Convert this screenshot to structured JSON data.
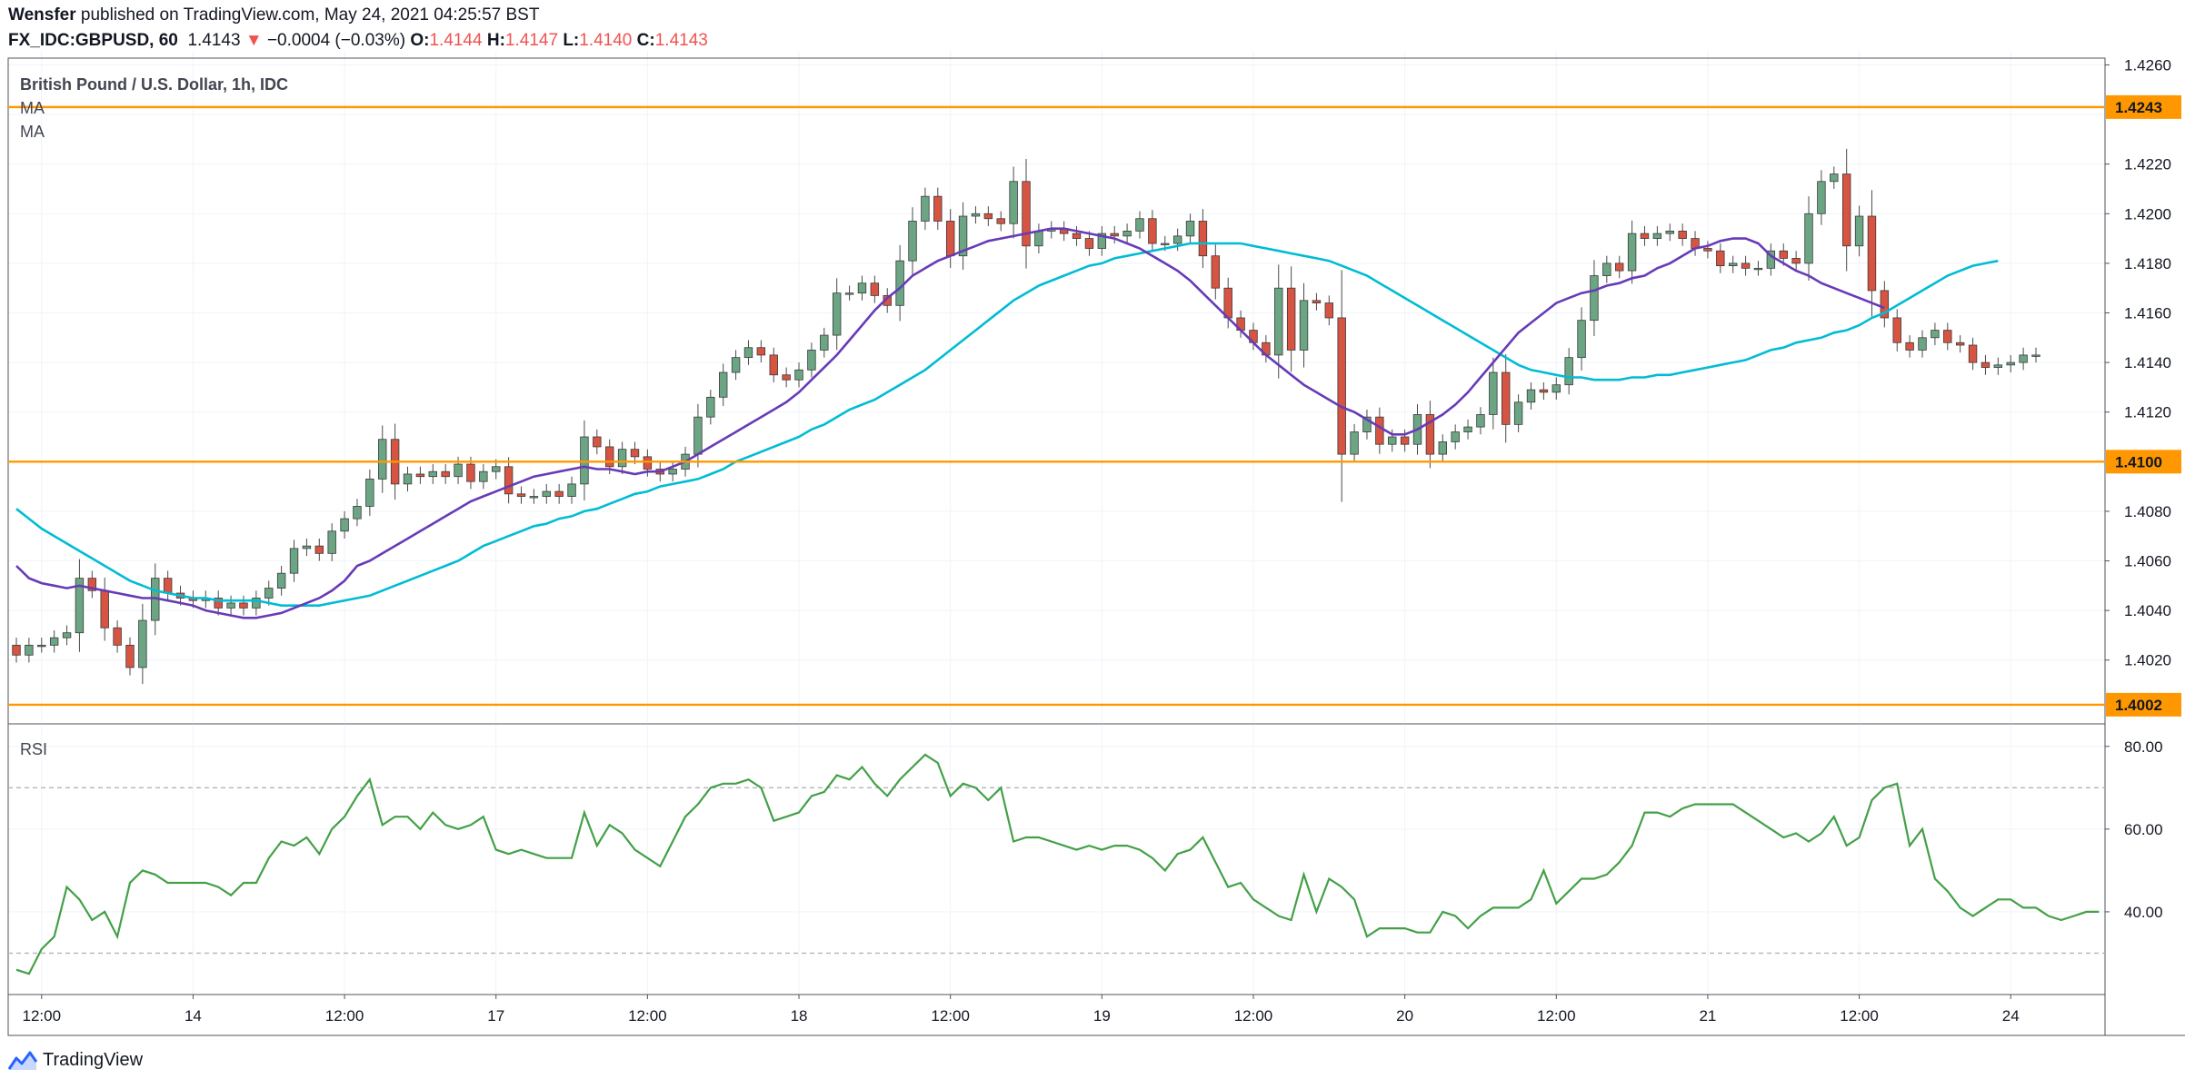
{
  "header": {
    "author": "Wensfer",
    "published_text": "published on TradingView.com, May 24, 2021 04:25:57 BST",
    "symbol": "FX_IDC:GBPUSD, 60",
    "last_price": "1.4143",
    "change_arrow": "▼",
    "change": "−0.0004 (−0.03%)",
    "open_label": "O:",
    "open": "1.4144",
    "high_label": "H:",
    "high": "1.4147",
    "low_label": "L:",
    "low": "1.4140",
    "close_label": "C:",
    "close": "1.4143"
  },
  "footer": {
    "brand": "TradingView"
  },
  "colors": {
    "up": "#6ba583",
    "down": "#d75442",
    "ma_fast": "#673ab7",
    "ma_slow": "#00bcd4",
    "hline": "#ff9800",
    "rsi": "#43a047",
    "grid": "#f0f3fa",
    "axis_text": "#131722",
    "border": "#50535e"
  },
  "chart_data": [
    {
      "type": "candlestick",
      "title": "British Pound / U.S. Dollar, 1h, IDC",
      "indicators": [
        "MA",
        "MA"
      ],
      "y_range": [
        1.3995,
        1.4262
      ],
      "y_ticks": [
        "1.4020",
        "1.4040",
        "1.4060",
        "1.4080",
        "1.4100",
        "1.4120",
        "1.4140",
        "1.4160",
        "1.4180",
        "1.4200",
        "1.4220",
        "1.4240",
        "1.4260"
      ],
      "x_ticks": [
        {
          "i": 2,
          "label": "12:00"
        },
        {
          "i": 14,
          "label": "14"
        },
        {
          "i": 26,
          "label": "12:00"
        },
        {
          "i": 38,
          "label": "17"
        },
        {
          "i": 50,
          "label": "12:00"
        },
        {
          "i": 62,
          "label": "18"
        },
        {
          "i": 74,
          "label": "12:00"
        },
        {
          "i": 86,
          "label": "19"
        },
        {
          "i": 98,
          "label": "12:00"
        },
        {
          "i": 110,
          "label": "20"
        },
        {
          "i": 122,
          "label": "12:00"
        },
        {
          "i": 134,
          "label": "21"
        },
        {
          "i": 146,
          "label": "12:00"
        },
        {
          "i": 158,
          "label": "24"
        }
      ],
      "horizontal_lines": [
        {
          "value": 1.4243,
          "label": "1.4243"
        },
        {
          "value": 1.41,
          "label": "1.4100"
        },
        {
          "value": 1.4002,
          "label": "1.4002"
        }
      ],
      "close": [
        1.4022,
        1.4026,
        1.4026,
        1.4029,
        1.4031,
        1.4053,
        1.4048,
        1.4033,
        1.4026,
        1.4017,
        1.4036,
        1.4053,
        1.4047,
        1.4045,
        1.4044,
        1.4045,
        1.4041,
        1.4043,
        1.4041,
        1.4045,
        1.4049,
        1.4055,
        1.4065,
        1.4066,
        1.4063,
        1.4072,
        1.4077,
        1.4082,
        1.4093,
        1.4109,
        1.4091,
        1.4095,
        1.4094,
        1.4096,
        1.4094,
        1.4099,
        1.4092,
        1.4096,
        1.4098,
        1.4087,
        1.4086,
        1.4086,
        1.4088,
        1.4086,
        1.4091,
        1.411,
        1.4106,
        1.4098,
        1.4105,
        1.4102,
        1.4097,
        1.4095,
        1.4097,
        1.4103,
        1.4118,
        1.4126,
        1.4136,
        1.4142,
        1.4146,
        1.4143,
        1.4135,
        1.4133,
        1.4137,
        1.4145,
        1.4151,
        1.4168,
        1.4168,
        1.4172,
        1.4167,
        1.4163,
        1.4181,
        1.4197,
        1.4207,
        1.4197,
        1.4183,
        1.4199,
        1.42,
        1.4198,
        1.4196,
        1.4213,
        1.4187,
        1.4193,
        1.4194,
        1.4192,
        1.419,
        1.4186,
        1.4192,
        1.4191,
        1.4193,
        1.4198,
        1.4188,
        1.4188,
        1.4191,
        1.4197,
        1.4183,
        1.417,
        1.4158,
        1.4153,
        1.4148,
        1.4143,
        1.417,
        1.4145,
        1.4165,
        1.4164,
        1.4158,
        1.4103,
        1.4112,
        1.4118,
        1.4107,
        1.411,
        1.4107,
        1.4119,
        1.4103,
        1.4108,
        1.4112,
        1.4114,
        1.4119,
        1.4136,
        1.4115,
        1.4124,
        1.4129,
        1.4128,
        1.4131,
        1.4142,
        1.4157,
        1.4175,
        1.418,
        1.4177,
        1.4192,
        1.419,
        1.4192,
        1.4193,
        1.419,
        1.4186,
        1.4185,
        1.4179,
        1.418,
        1.4178,
        1.4178,
        1.4185,
        1.4182,
        1.418,
        1.42,
        1.4213,
        1.4216,
        1.4187,
        1.4199,
        1.4169,
        1.4158,
        1.4148,
        1.4145,
        1.415,
        1.4153,
        1.4148,
        1.4147,
        1.414,
        1.4138,
        1.4139,
        1.414,
        1.4143,
        1.4143
      ],
      "ma_fast": [
        1.4058,
        1.4053,
        1.4051,
        1.405,
        1.4049,
        1.405,
        1.4049,
        1.4048,
        1.4047,
        1.4046,
        1.4045,
        1.4045,
        1.4044,
        1.4043,
        1.4042,
        1.404,
        1.4039,
        1.4038,
        1.4037,
        1.4037,
        1.4038,
        1.4039,
        1.4041,
        1.4043,
        1.4045,
        1.4048,
        1.4052,
        1.4058,
        1.406,
        1.4063,
        1.4066,
        1.4069,
        1.4072,
        1.4075,
        1.4078,
        1.4081,
        1.4084,
        1.4086,
        1.4088,
        1.409,
        1.4092,
        1.4094,
        1.4095,
        1.4096,
        1.4097,
        1.4098,
        1.4097,
        1.4097,
        1.4096,
        1.4095,
        1.4096,
        1.4096,
        1.4098,
        1.41,
        1.4103,
        1.4106,
        1.4109,
        1.4112,
        1.4115,
        1.4118,
        1.4121,
        1.4124,
        1.4128,
        1.4133,
        1.4138,
        1.4143,
        1.4149,
        1.4155,
        1.4161,
        1.4166,
        1.417,
        1.4175,
        1.4178,
        1.4181,
        1.4183,
        1.4185,
        1.4187,
        1.4189,
        1.419,
        1.4191,
        1.4192,
        1.4193,
        1.4194,
        1.4194,
        1.4193,
        1.4192,
        1.4191,
        1.419,
        1.4188,
        1.4186,
        1.4183,
        1.418,
        1.4177,
        1.4173,
        1.4168,
        1.4163,
        1.4158,
        1.4153,
        1.4148,
        1.4143,
        1.4139,
        1.4135,
        1.4131,
        1.4128,
        1.4125,
        1.4122,
        1.412,
        1.4117,
        1.4114,
        1.4111,
        1.4111,
        1.4113,
        1.4116,
        1.4119,
        1.4123,
        1.4128,
        1.4134,
        1.414,
        1.4146,
        1.4152,
        1.4156,
        1.416,
        1.4164,
        1.4166,
        1.4168,
        1.4169,
        1.4171,
        1.4172,
        1.4174,
        1.4175,
        1.4178,
        1.418,
        1.4183,
        1.4186,
        1.4187,
        1.4189,
        1.419,
        1.419,
        1.4188,
        1.4183,
        1.418,
        1.4177,
        1.4175,
        1.4172,
        1.417,
        1.4168,
        1.4166,
        1.4164,
        1.4162
      ],
      "ma_slow": [
        1.4081,
        1.4077,
        1.4073,
        1.407,
        1.4067,
        1.4064,
        1.4061,
        1.4058,
        1.4055,
        1.4052,
        1.405,
        1.4048,
        1.4047,
        1.4046,
        1.4045,
        1.4045,
        1.4044,
        1.4044,
        1.4044,
        1.4044,
        1.4043,
        1.4042,
        1.4042,
        1.4042,
        1.4042,
        1.4043,
        1.4044,
        1.4045,
        1.4046,
        1.4048,
        1.405,
        1.4052,
        1.4054,
        1.4056,
        1.4058,
        1.406,
        1.4063,
        1.4066,
        1.4068,
        1.407,
        1.4072,
        1.4074,
        1.4075,
        1.4077,
        1.4078,
        1.408,
        1.4081,
        1.4083,
        1.4085,
        1.4087,
        1.4088,
        1.409,
        1.4091,
        1.4092,
        1.4093,
        1.4095,
        1.4097,
        1.41,
        1.4102,
        1.4104,
        1.4106,
        1.4108,
        1.411,
        1.4113,
        1.4115,
        1.4118,
        1.4121,
        1.4123,
        1.4125,
        1.4128,
        1.4131,
        1.4134,
        1.4137,
        1.4141,
        1.4145,
        1.4149,
        1.4153,
        1.4157,
        1.4161,
        1.4165,
        1.4168,
        1.4171,
        1.4173,
        1.4175,
        1.4177,
        1.4179,
        1.418,
        1.4182,
        1.4183,
        1.4184,
        1.4185,
        1.4186,
        1.4187,
        1.4188,
        1.4188,
        1.4188,
        1.4188,
        1.4188,
        1.4187,
        1.4186,
        1.4185,
        1.4184,
        1.4183,
        1.4182,
        1.4181,
        1.4179,
        1.4177,
        1.4175,
        1.4172,
        1.4169,
        1.4166,
        1.4163,
        1.416,
        1.4157,
        1.4154,
        1.4151,
        1.4148,
        1.4145,
        1.4142,
        1.4139,
        1.4137,
        1.4136,
        1.4135,
        1.4134,
        1.4134,
        1.4133,
        1.4133,
        1.4133,
        1.4134,
        1.4134,
        1.4135,
        1.4135,
        1.4136,
        1.4137,
        1.4138,
        1.4139,
        1.414,
        1.4141,
        1.4143,
        1.4145,
        1.4146,
        1.4148,
        1.4149,
        1.415,
        1.4152,
        1.4153,
        1.4155,
        1.4158,
        1.416,
        1.4163,
        1.4166,
        1.4169,
        1.4172,
        1.4175,
        1.4177,
        1.4179,
        1.418,
        1.4181
      ]
    },
    {
      "type": "line",
      "title": "RSI",
      "y_range": [
        20,
        85
      ],
      "y_ticks": [
        "40.00",
        "60.00",
        "80.00"
      ],
      "bands": [
        30,
        70
      ],
      "values": [
        26,
        25,
        31,
        34,
        46,
        43,
        38,
        40,
        34,
        47,
        50,
        49,
        47,
        47,
        47,
        47,
        46,
        44,
        47,
        47,
        53,
        57,
        56,
        58,
        54,
        60,
        63,
        68,
        72,
        61,
        63,
        63,
        60,
        64,
        61,
        60,
        61,
        63,
        55,
        54,
        55,
        54,
        53,
        53,
        53,
        64,
        56,
        61,
        59,
        55,
        53,
        51,
        57,
        63,
        66,
        70,
        71,
        71,
        72,
        70,
        62,
        63,
        64,
        68,
        69,
        73,
        72,
        75,
        71,
        68,
        72,
        75,
        78,
        76,
        68,
        71,
        70,
        67,
        70,
        57,
        58,
        58,
        57,
        56,
        55,
        56,
        55,
        56,
        56,
        55,
        53,
        50,
        54,
        55,
        58,
        52,
        46,
        47,
        43,
        41,
        39,
        38,
        49,
        40,
        48,
        46,
        43,
        34,
        36,
        36,
        36,
        35,
        35,
        40,
        39,
        36,
        39,
        41,
        41,
        41,
        43,
        50,
        42,
        45,
        48,
        48,
        49,
        52,
        56,
        64,
        64,
        63,
        65,
        66,
        66,
        66,
        66,
        64,
        62,
        60,
        58,
        59,
        57,
        59,
        63,
        56,
        58,
        67,
        70,
        71,
        56,
        60,
        48,
        45,
        41,
        39,
        41,
        43,
        43,
        41,
        41,
        39,
        38,
        39,
        40,
        40
      ]
    }
  ]
}
